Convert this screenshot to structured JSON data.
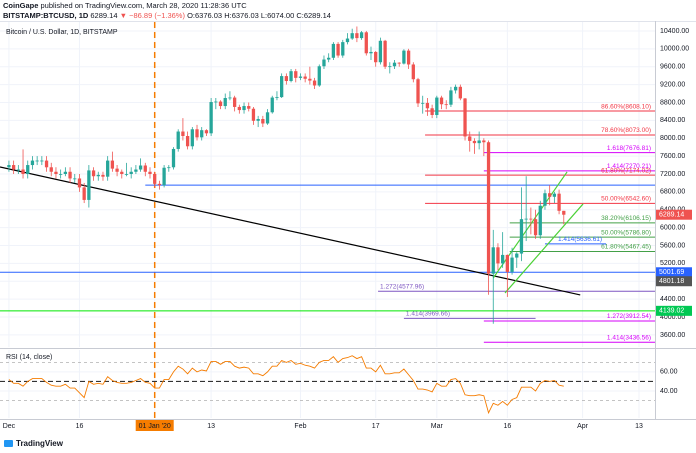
{
  "header": {
    "publisher": "CoinGape",
    "published": "published on TradingView.com, March 28, 2020 11:28:36 UTC",
    "symbol": "BITSTAMP:BTCUSD, 1D",
    "price": "6289.14",
    "change": "▼ −86.89 (−1.36%)",
    "ohlc": "O:6376.03 H:6376.03 L:6074.00 C:6289.14"
  },
  "footer": {
    "brand": "TradingView"
  },
  "chart_data": [
    {
      "type": "candlestick",
      "title": "Bitcoin / U.S. Dollar, 1D, BITSTAMP",
      "up_color": "#26a69a",
      "down_color": "#ef5350",
      "x": [
        0,
        1,
        2,
        3,
        4,
        5,
        6,
        7,
        8,
        9,
        10,
        11,
        12,
        13,
        14,
        15,
        16,
        17,
        18,
        19,
        20,
        21,
        22,
        23,
        24,
        25,
        26,
        27,
        28,
        29,
        30,
        31,
        32,
        33,
        34,
        35,
        36,
        37,
        38,
        39,
        40,
        41,
        42,
        43,
        44,
        45,
        46,
        47,
        48,
        49,
        50,
        51,
        52,
        53,
        54,
        55,
        56,
        57,
        58,
        59,
        60,
        61,
        62,
        63,
        64,
        65,
        66,
        67,
        68,
        69,
        70,
        71,
        72,
        73,
        74,
        75,
        76,
        77,
        78,
        79,
        80,
        81,
        82,
        83,
        84,
        85,
        86,
        87,
        88,
        89,
        90,
        91,
        92,
        93,
        94,
        95,
        96,
        97,
        98,
        99,
        100,
        101,
        102,
        103,
        104,
        105,
        106,
        107,
        108,
        109,
        110,
        111,
        112,
        113,
        114,
        115,
        116,
        117,
        118
      ],
      "open": [
        7350,
        7400,
        7300,
        7300,
        7200,
        7400,
        7500,
        7500,
        7500,
        7350,
        7250,
        7200,
        7200,
        7250,
        7100,
        7100,
        6900,
        6620,
        7280,
        7150,
        7180,
        7140,
        7500,
        7320,
        7250,
        7200,
        7200,
        7250,
        7300,
        7390,
        7250,
        7200,
        6980,
        6950,
        7340,
        7350,
        7760,
        8150,
        8050,
        7820,
        8200,
        8020,
        8180,
        8110,
        8810,
        8820,
        8720,
        8900,
        8910,
        8700,
        8630,
        8720,
        8660,
        8390,
        8430,
        8330,
        8580,
        8910,
        8920,
        9390,
        9280,
        9500,
        9350,
        9380,
        9330,
        9290,
        9180,
        9610,
        9760,
        9800,
        10110,
        9850,
        10150,
        10230,
        10350,
        10240,
        10370,
        9900,
        9930,
        9700,
        10180,
        9600,
        9610,
        9690,
        9670,
        9960,
        9650,
        9320,
        8780,
        8790,
        8670,
        8520,
        8910,
        8760,
        8750,
        9070,
        9150,
        8890,
        8040,
        7940,
        7890,
        7950,
        7910,
        4970,
        5560,
        5200,
        5390,
        5010,
        5330,
        5420,
        6190,
        6200,
        6190,
        5830,
        6490,
        6770,
        6690,
        6760,
        6376.03
      ],
      "high": [
        7500,
        7500,
        7400,
        7750,
        7500,
        7600,
        7600,
        7600,
        7600,
        7450,
        7350,
        7300,
        7350,
        7350,
        7200,
        7200,
        7000,
        7400,
        7350,
        7250,
        7250,
        7600,
        7700,
        7400,
        7300,
        7450,
        7350,
        7400,
        7550,
        7450,
        7350,
        7250,
        7050,
        7400,
        7400,
        7800,
        8200,
        8450,
        8150,
        8250,
        8300,
        8250,
        8200,
        8900,
        8900,
        8850,
        9000,
        9050,
        8950,
        8750,
        8800,
        8800,
        8700,
        8500,
        8500,
        8650,
        8950,
        9050,
        9450,
        9450,
        9550,
        9550,
        9450,
        9450,
        9600,
        9350,
        9650,
        9850,
        9900,
        10150,
        10150,
        10200,
        10350,
        10450,
        10500,
        10400,
        10400,
        10050,
        9950,
        10250,
        10200,
        9700,
        9750,
        9700,
        9990,
        10000,
        9700,
        9350,
        8950,
        8900,
        8750,
        8950,
        8950,
        8850,
        9150,
        9200,
        9200,
        8900,
        8150,
        8000,
        8150,
        8000,
        7950,
        5950,
        5650,
        5900,
        5400,
        5550,
        5450,
        6900,
        7150,
        6450,
        6400,
        6600,
        6850,
        6950,
        6800,
        6850,
        6376.03
      ],
      "low": [
        7250,
        7200,
        7200,
        7100,
        7100,
        7300,
        7400,
        7400,
        7250,
        7150,
        7100,
        7100,
        7150,
        7000,
        7000,
        6800,
        6550,
        6450,
        7050,
        7050,
        7050,
        7050,
        7250,
        7150,
        7100,
        7150,
        7100,
        7200,
        7250,
        7150,
        7100,
        6900,
        6850,
        6900,
        7250,
        7300,
        7700,
        7950,
        7750,
        7750,
        7950,
        7950,
        8050,
        8050,
        8650,
        8650,
        8650,
        8850,
        8600,
        8550,
        8550,
        8600,
        8300,
        8250,
        8250,
        8300,
        8550,
        8850,
        8900,
        9200,
        9250,
        9250,
        9300,
        9250,
        9200,
        9100,
        9150,
        9550,
        9700,
        9750,
        9800,
        9800,
        10100,
        10200,
        10150,
        10200,
        9850,
        9750,
        9600,
        9650,
        9550,
        9450,
        9550,
        9600,
        9650,
        9550,
        9250,
        8700,
        8550,
        8500,
        8450,
        8450,
        8650,
        8650,
        8700,
        9000,
        8850,
        7950,
        7700,
        7650,
        7750,
        7600,
        4500,
        3850,
        5050,
        5100,
        4450,
        4950,
        5100,
        5250,
        5700,
        5850,
        5750,
        5750,
        6400,
        6500,
        6550,
        6300,
        6074
      ],
      "close": [
        7400,
        7300,
        7300,
        7200,
        7400,
        7500,
        7500,
        7500,
        7350,
        7250,
        7200,
        7200,
        7250,
        7100,
        7100,
        6900,
        6620,
        7280,
        7150,
        7180,
        7140,
        7500,
        7320,
        7250,
        7200,
        7200,
        7250,
        7300,
        7390,
        7250,
        7200,
        6980,
        6950,
        7340,
        7350,
        7760,
        8150,
        8050,
        7820,
        8200,
        8020,
        8180,
        8110,
        8810,
        8820,
        8720,
        8900,
        8910,
        8700,
        8630,
        8720,
        8660,
        8390,
        8430,
        8330,
        8580,
        8910,
        8920,
        9390,
        9280,
        9500,
        9350,
        9380,
        9330,
        9290,
        9180,
        9610,
        9760,
        9800,
        10110,
        9850,
        10150,
        10230,
        10350,
        10240,
        10370,
        9900,
        9930,
        9700,
        10180,
        9600,
        9610,
        9690,
        9670,
        9960,
        9650,
        9320,
        8780,
        8790,
        8670,
        8520,
        8910,
        8760,
        8750,
        9070,
        9150,
        8890,
        8040,
        7940,
        7890,
        7950,
        7910,
        4970,
        5560,
        5200,
        5390,
        5010,
        5330,
        5420,
        6190,
        6200,
        6190,
        5830,
        6490,
        6770,
        6690,
        6760,
        6376,
        6289.14
      ],
      "xlim": [
        -1.9,
        137.4
      ],
      "ylim": [
        3330,
        10600
      ],
      "yticks": [
        {
          "value": 3600,
          "label": "3600.00"
        },
        {
          "value": 4000,
          "label": "4000.00"
        },
        {
          "value": 4400,
          "label": "4400.00"
        },
        {
          "value": 4800,
          "label": "4800.00"
        },
        {
          "value": 5200,
          "label": "5200.00"
        },
        {
          "value": 5600,
          "label": "5600.00"
        },
        {
          "value": 6000,
          "label": "6000.00"
        },
        {
          "value": 6400,
          "label": "6400.00"
        },
        {
          "value": 6800,
          "label": "6800.00"
        },
        {
          "value": 7200,
          "label": "7200.00"
        },
        {
          "value": 7600,
          "label": "7600.00"
        },
        {
          "value": 8000,
          "label": "8000.00"
        },
        {
          "value": 8400,
          "label": "8400.00"
        },
        {
          "value": 8800,
          "label": "8800.00"
        },
        {
          "value": 9200,
          "label": "9200.00"
        },
        {
          "value": 9600,
          "label": "9600.00"
        },
        {
          "value": 10000,
          "label": "10000.00"
        },
        {
          "value": 10400,
          "label": "10400.00"
        }
      ],
      "xticks": [
        {
          "value": 0,
          "label": "Dec"
        },
        {
          "value": 15,
          "label": "16"
        },
        {
          "value": 31,
          "label": "01 Jan '20"
        },
        {
          "value": 43,
          "label": "13"
        },
        {
          "value": 62,
          "label": "Feb"
        },
        {
          "value": 78,
          "label": "17"
        },
        {
          "value": 91,
          "label": "Mar"
        },
        {
          "value": 106,
          "label": "16"
        },
        {
          "value": 122,
          "label": "Apr"
        },
        {
          "value": 134,
          "label": "13"
        }
      ],
      "grid": true,
      "crosshair_x": 31,
      "crosshair_color": "#f57c00",
      "levels": [
        {
          "label": "86.60%(8608.10)",
          "value": 8608.1,
          "color": "#f23645",
          "from": 88.5,
          "anchor": "right"
        },
        {
          "label": "78.60%(8073.00)",
          "value": 8073,
          "color": "#f23645",
          "from": 88.5,
          "anchor": "right"
        },
        {
          "label": "1.618(7676.81)",
          "value": 7676.81,
          "color": "#d500f9",
          "from": 101,
          "anchor": "right"
        },
        {
          "label": "1.414(7270.21)",
          "value": 7270.21,
          "color": "#d500f9",
          "from": 101,
          "anchor": "right"
        },
        {
          "label": "61.80%(7174.02)",
          "value": 7174.02,
          "color": "#f23645",
          "from": 88.5,
          "anchor": "right"
        },
        {
          "label": "50.00%(6542.60)",
          "value": 6542.6,
          "color": "#f23645",
          "from": 88.5,
          "anchor": "right"
        },
        {
          "label": "38.20%(6106.15)",
          "value": 6106.15,
          "color": "#43a047",
          "from": 106.5,
          "anchor": "right"
        },
        {
          "label": "50.00%(5786.80)",
          "value": 5786.8,
          "color": "#43a047",
          "from": 106.5,
          "anchor": "right"
        },
        {
          "label": "61.80%(5467.45)",
          "value": 5467.45,
          "color": "#43a047",
          "from": 106.5,
          "anchor": "right"
        },
        {
          "label": "1.414(5636.61)",
          "value": 5636.61,
          "color": "#2962ff",
          "from": 114,
          "to": 127,
          "anchor": "right"
        },
        {
          "label": "1.272(4577.96)",
          "value": 4577.96,
          "color": "#7e57c2",
          "from": 78.5,
          "anchor": "left"
        },
        {
          "label": "1.414(3969.66)",
          "value": 3969.66,
          "color": "#7e57c2",
          "from": 84,
          "to": 112,
          "anchor": "left"
        },
        {
          "label": "1.272(3912.54)",
          "value": 3912.54,
          "color": "#d500f9",
          "from": 101,
          "anchor": "right"
        },
        {
          "label": "1.414(3436.56)",
          "value": 3436.56,
          "color": "#d500f9",
          "from": 101,
          "anchor": "right"
        },
        {
          "value": 6950,
          "color": "#2962ff",
          "from": 29
        },
        {
          "value": 5001.69,
          "color": "#2962ff"
        },
        {
          "value": 4139.02,
          "color": "#00e600"
        }
      ],
      "trendlines": [
        {
          "color": "#000000",
          "points": [
            [
              -1.9,
              7357
            ],
            [
              121.5,
              4494
            ]
          ]
        },
        {
          "color": "#4cd137",
          "points": [
            [
              103,
              4874
            ],
            [
              118.7,
              7246
            ]
          ]
        },
        {
          "color": "#4cd137",
          "points": [
            [
              105.5,
              4539
            ],
            [
              122.1,
              6530
            ]
          ]
        }
      ],
      "price_tags": [
        {
          "value": 6289.14,
          "color": "#ef5350"
        },
        {
          "value": 5001.69,
          "color": "#2962ff"
        },
        {
          "value": 4801.18,
          "color": "#555555"
        },
        {
          "value": 4139.02,
          "color": "#00c853"
        }
      ]
    },
    {
      "type": "line",
      "title": "RSI (14, close)",
      "color": "#f57c00",
      "x": [
        0,
        1,
        2,
        3,
        4,
        5,
        6,
        7,
        8,
        9,
        10,
        11,
        12,
        13,
        14,
        15,
        16,
        17,
        18,
        19,
        20,
        21,
        22,
        23,
        24,
        25,
        26,
        27,
        28,
        29,
        30,
        31,
        32,
        33,
        34,
        35,
        36,
        37,
        38,
        39,
        40,
        41,
        42,
        43,
        44,
        45,
        46,
        47,
        48,
        49,
        50,
        51,
        52,
        53,
        54,
        55,
        56,
        57,
        58,
        59,
        60,
        61,
        62,
        63,
        64,
        65,
        66,
        67,
        68,
        69,
        70,
        71,
        72,
        73,
        74,
        75,
        76,
        77,
        78,
        79,
        80,
        81,
        82,
        83,
        84,
        85,
        86,
        87,
        88,
        89,
        90,
        91,
        92,
        93,
        94,
        95,
        96,
        97,
        98,
        99,
        100,
        101,
        102,
        103,
        104,
        105,
        106,
        107,
        108,
        109,
        110,
        111,
        112,
        113,
        114,
        115,
        116,
        117,
        118
      ],
      "values": [
        52,
        48,
        48,
        45,
        50,
        53,
        53,
        53,
        49,
        46,
        45,
        45,
        47,
        43,
        43,
        38,
        33,
        50,
        47,
        48,
        47,
        55,
        51,
        49,
        48,
        48,
        49,
        51,
        53,
        49,
        48,
        43,
        43,
        52,
        52,
        60,
        66,
        63,
        58,
        64,
        60,
        62,
        61,
        71,
        71,
        68,
        71,
        71,
        66,
        64,
        65,
        64,
        58,
        58,
        56,
        60,
        66,
        66,
        72,
        70,
        72,
        68,
        69,
        67,
        66,
        64,
        70,
        72,
        72,
        76,
        70,
        74,
        75,
        77,
        74,
        76,
        64,
        64,
        60,
        67,
        58,
        58,
        59,
        59,
        63,
        57,
        51,
        42,
        42,
        41,
        39,
        48,
        45,
        45,
        52,
        53,
        48,
        36,
        35,
        35,
        36,
        35,
        17,
        27,
        25,
        29,
        25,
        31,
        33,
        44,
        44,
        44,
        40,
        48,
        51,
        50,
        51,
        46,
        45
      ],
      "xlim": [
        -1.9,
        137.4
      ],
      "ylim": [
        11.6,
        83
      ],
      "yticks": [
        {
          "value": 40,
          "label": "40.00"
        },
        {
          "value": 60,
          "label": "60.00"
        }
      ],
      "levels": [
        70,
        50,
        30
      ]
    }
  ]
}
